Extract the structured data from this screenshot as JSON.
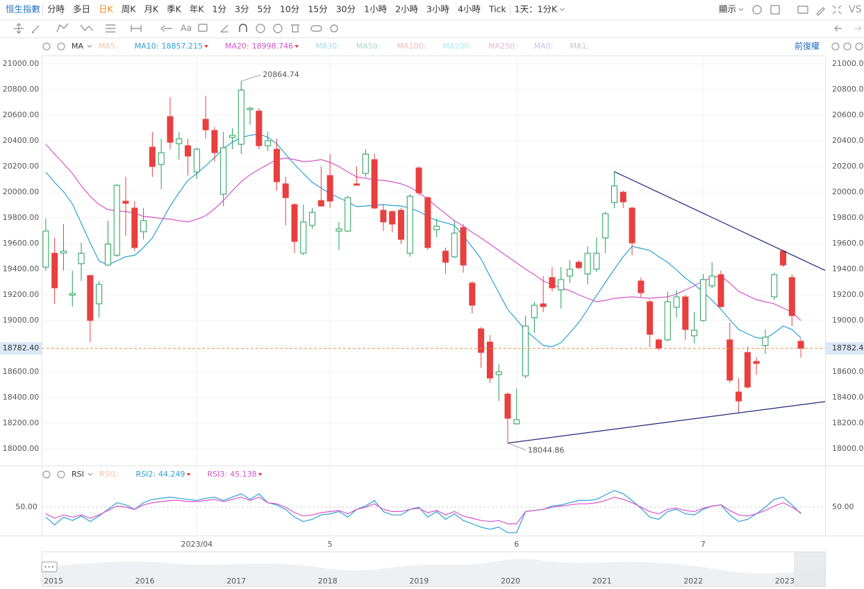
{
  "toolbar": {
    "symbol": "恒生指數",
    "periods": [
      "分時",
      "多日",
      "日K",
      "周K",
      "月K",
      "季K",
      "年K",
      "1分",
      "3分",
      "5分",
      "10分",
      "15分",
      "30分",
      "1小時",
      "2小時",
      "3小時",
      "4小時",
      "Tick"
    ],
    "active": 2,
    "range": "1天：1分K",
    "display": "顯示",
    "compare": "VS",
    "text_tool": "Aa"
  },
  "chart_data": [
    {
      "type": "candlestick",
      "indicator": "MA",
      "adjust": "前復權",
      "categories": [
        null,
        null,
        null,
        null,
        null,
        null,
        null,
        null,
        null,
        null,
        null,
        null,
        null,
        null,
        null,
        null,
        null,
        "2023/04",
        null,
        null,
        null,
        null,
        null,
        null,
        null,
        null,
        null,
        null,
        null,
        null,
        null,
        null,
        "5",
        null,
        null,
        null,
        null,
        null,
        null,
        null,
        null,
        null,
        null,
        null,
        null,
        null,
        null,
        null,
        null,
        null,
        null,
        null,
        null,
        "6",
        null,
        null,
        null,
        null,
        null,
        null,
        null,
        null,
        null,
        null,
        null,
        null,
        null,
        null,
        null,
        null,
        null,
        null,
        null,
        null,
        "7",
        null,
        null,
        null,
        null,
        null,
        null,
        null,
        null,
        null,
        null,
        null
      ],
      "open": [
        19416,
        19524,
        19525,
        19198,
        19443,
        19351,
        19130,
        19432,
        19508,
        19930,
        19876,
        19692,
        20351,
        20216,
        20589,
        20378,
        20362,
        20157,
        20568,
        20481,
        19984,
        20427,
        20373,
        20643,
        20632,
        20362,
        20335,
        20065,
        19903,
        19524,
        19741,
        19935,
        20130,
        19697,
        19697,
        20065,
        20146,
        20254,
        19859,
        19849,
        19859,
        19524,
        20189,
        19957,
        19708,
        19541,
        19497,
        19724,
        19292,
        18935,
        18832,
        18578,
        18427,
        18195,
        18568,
        19022,
        19130,
        19335,
        19238,
        19346,
        19454,
        19362,
        19400,
        19643,
        19919,
        20000,
        19876,
        19308,
        19146,
        18849,
        18849,
        19103,
        19184,
        18881,
        19000,
        19270,
        19357,
        18849,
        18443,
        18751,
        18681,
        18805,
        19184,
        19541,
        19335,
        18838
      ],
      "high": [
        19795,
        19643,
        19751,
        19389,
        19605,
        19351,
        19308,
        19778,
        20060,
        20119,
        19930,
        19876,
        20470,
        20416,
        20741,
        20470,
        20416,
        20346,
        20751,
        20508,
        20470,
        20497,
        20864.74,
        20665,
        20654,
        20470,
        20416,
        20119,
        19914,
        19903,
        19876,
        20200,
        20297,
        19768,
        19973,
        20200,
        20335,
        20297,
        19903,
        19859,
        19876,
        19984,
        20200,
        19968,
        19795,
        19568,
        19778,
        19751,
        19308,
        18950,
        18886,
        18660,
        18440,
        18470,
        19038,
        19146,
        19346,
        19416,
        19416,
        19470,
        19470,
        19578,
        19649,
        19849,
        20157,
        20011,
        19886,
        19335,
        19160,
        18859,
        19227,
        19238,
        19200,
        19065,
        19362,
        19454,
        19389,
        18984,
        18551,
        18795,
        18714,
        18930,
        19373,
        19551,
        19362,
        18860
      ],
      "low": [
        19389,
        19130,
        19389,
        19108,
        19308,
        18832,
        19022,
        19427,
        19497,
        19659,
        19541,
        19632,
        20119,
        20022,
        20335,
        20254,
        20130,
        20103,
        20416,
        20238,
        19892,
        20335,
        20297,
        20524,
        20335,
        20319,
        20011,
        19741,
        19524,
        19510,
        19714,
        19886,
        19876,
        19551,
        19690,
        20049,
        20119,
        19870,
        19697,
        19686,
        19595,
        19497,
        19973,
        19551,
        19649,
        19362,
        19486,
        19373,
        19054,
        18632,
        18514,
        18373,
        18044.86,
        18189,
        18551,
        18903,
        19065,
        19227,
        19092,
        19292,
        19400,
        19281,
        19378,
        19524,
        19876,
        19876,
        19508,
        19184,
        18795,
        18768,
        18838,
        19022,
        18849,
        18822,
        18990,
        19254,
        19100,
        18514,
        18281,
        18470,
        18578,
        18740,
        19162,
        19416,
        18957,
        18711
      ],
      "close": [
        19697,
        19254,
        19540,
        19210,
        19524,
        19000,
        19281,
        19595,
        20054,
        19913,
        19568,
        19778,
        20200,
        20308,
        20389,
        20416,
        20281,
        20335,
        20486,
        20308,
        20346,
        20443,
        20795,
        20654,
        20362,
        20400,
        20081,
        19957,
        19616,
        19768,
        19843,
        19892,
        19930,
        19714,
        19957,
        20054,
        20297,
        19876,
        19768,
        19751,
        19632,
        19968,
        19995,
        19568,
        19735,
        19454,
        19681,
        19432,
        19119,
        18751,
        18551,
        18600,
        18238,
        18227,
        18957,
        19119,
        19108,
        19254,
        19319,
        19400,
        19411,
        19524,
        19524,
        19832,
        20049,
        19924,
        19605,
        19216,
        18892,
        18784,
        19146,
        19184,
        18930,
        18924,
        19319,
        19346,
        19108,
        18535,
        18373,
        18481,
        18665,
        18870,
        19357,
        19432,
        19038,
        18782.4
      ],
      "up_color": "#1f9d55",
      "down_color": "#e83f3f",
      "series": [
        {
          "name": "MA5:",
          "color": "#f5c3a5"
        },
        {
          "name": "MA10:",
          "color": "#2a9fd6",
          "last": 18857.215,
          "values": [
            20157,
            20076,
            20005,
            19908,
            19757,
            19606,
            19465,
            19433,
            19465,
            19497,
            19508,
            19568,
            19643,
            19768,
            19892,
            19995,
            20092,
            20146,
            20205,
            20270,
            20341,
            20389,
            20427,
            20443,
            20454,
            20427,
            20378,
            20297,
            20216,
            20146,
            20076,
            20032,
            19989,
            19957,
            19924,
            19887,
            19892,
            19897,
            19903,
            19897,
            19892,
            19876,
            19849,
            19811,
            19778,
            19762,
            19741,
            19660,
            19573,
            19481,
            19346,
            19216,
            19087,
            19006,
            18924,
            18865,
            18806,
            18795,
            18827,
            18903,
            18984,
            19087,
            19195,
            19297,
            19400,
            19497,
            19578,
            19562,
            19546,
            19497,
            19454,
            19395,
            19330,
            19281,
            19222,
            19157,
            19087,
            19006,
            18930,
            18897,
            18865,
            18860,
            18903,
            18957,
            18930,
            18865
          ]
        },
        {
          "name": "MA20:",
          "color": "#d652c9",
          "last": 18998.746,
          "values": [
            20373,
            20297,
            20222,
            20146,
            20049,
            19968,
            19903,
            19865,
            19854,
            19849,
            19838,
            19811,
            19805,
            19795,
            19789,
            19778,
            19768,
            19789,
            19816,
            19870,
            19935,
            20011,
            20081,
            20135,
            20178,
            20216,
            20254,
            20265,
            20254,
            20238,
            20243,
            20254,
            20232,
            20200,
            20157,
            20119,
            20108,
            20097,
            20092,
            20081,
            20065,
            20038,
            19995,
            19946,
            19887,
            19833,
            19778,
            19735,
            19687,
            19643,
            19595,
            19546,
            19497,
            19449,
            19400,
            19357,
            19308,
            19281,
            19254,
            19233,
            19200,
            19173,
            19146,
            19157,
            19173,
            19179,
            19184,
            19179,
            19173,
            19179,
            19184,
            19206,
            19238,
            19270,
            19308,
            19335,
            19346,
            19292,
            19227,
            19195,
            19162,
            19146,
            19130,
            19097,
            19065,
            19000
          ]
        },
        {
          "name": "MA30:",
          "color": "#a8d8ec"
        },
        {
          "name": "MA50:",
          "color": "#a6d9c8"
        },
        {
          "name": "MA100:",
          "color": "#f1b9b9"
        },
        {
          "name": "MA200:",
          "color": "#a9eaf2"
        },
        {
          "name": "MA250:",
          "color": "#e3b6d0"
        },
        {
          "name": "MA0:",
          "color": "#c8c2ea"
        },
        {
          "name": "MA1:",
          "color": "#c6c6c6"
        }
      ],
      "last": {
        "value": 18782.4,
        "label": "18782.40"
      },
      "trend_lines": [
        {
          "from": [
            64,
            20160
          ],
          "to": [
            87.73,
            19390
          ]
        },
        {
          "from": [
            52,
            18044.86
          ],
          "to": [
            87.73,
            18368
          ]
        }
      ],
      "xlim": [
        -0.46,
        87.73
      ],
      "ylim": [
        17870,
        21065
      ],
      "yticks": [
        {
          "value": 18000,
          "label": "18000.00"
        },
        {
          "value": 18200,
          "label": "18200.00"
        },
        {
          "value": 18400,
          "label": "18400.00"
        },
        {
          "value": 18600,
          "label": "18600.00"
        },
        {
          "value": 18800,
          "label": "18800.00"
        },
        {
          "value": 19000,
          "label": "19000.00"
        },
        {
          "value": 19200,
          "label": "19200.00"
        },
        {
          "value": 19400,
          "label": "19400.00"
        },
        {
          "value": 19600,
          "label": "19600.00"
        },
        {
          "value": 19800,
          "label": "19800.00"
        },
        {
          "value": 20000,
          "label": "20000.00"
        },
        {
          "value": 20200,
          "label": "20200.00"
        },
        {
          "value": 20400,
          "label": "20400.00"
        },
        {
          "value": 20600,
          "label": "20600.00"
        },
        {
          "value": 20800,
          "label": "20800.00"
        },
        {
          "value": 21000,
          "label": "21000.00"
        }
      ],
      "grid": true
    },
    {
      "type": "line",
      "indicator": "RSI",
      "series": [
        {
          "name": "RSI1:",
          "color": "#f5c3a5"
        },
        {
          "name": "RSI2:",
          "color": "#2a9fd6",
          "last": 44.249,
          "values": [
            41,
            34,
            41,
            38,
            42,
            37,
            42,
            48,
            54,
            52,
            48,
            54,
            57,
            58,
            59,
            58,
            57,
            56,
            58,
            59,
            56,
            59,
            62,
            57,
            62,
            54,
            52,
            48,
            41,
            37,
            39,
            43,
            44,
            46,
            41,
            48,
            51,
            56,
            46,
            43,
            43,
            48,
            50,
            41,
            46,
            39,
            44,
            38,
            35,
            32,
            30,
            32,
            27,
            27,
            46,
            47,
            48,
            51,
            52,
            54,
            56,
            56,
            57,
            61,
            65,
            62,
            56,
            49,
            41,
            39,
            46,
            48,
            44,
            43,
            48,
            51,
            52,
            43,
            37,
            39,
            44,
            50,
            57,
            59,
            52,
            44
          ]
        },
        {
          "name": "RSI3:",
          "color": "#d652c9",
          "last": 45.138,
          "values": [
            44,
            40,
            43,
            41,
            43,
            40,
            43,
            47,
            51,
            50,
            48,
            52,
            54,
            55,
            56,
            56,
            55,
            55,
            56,
            57,
            55,
            57,
            59,
            56,
            59,
            54,
            53,
            50,
            45,
            42,
            43,
            45,
            46,
            47,
            44,
            48,
            50,
            53,
            48,
            46,
            46,
            48,
            49,
            45,
            47,
            43,
            46,
            42,
            40,
            38,
            37,
            38,
            35,
            35,
            46,
            47,
            48,
            50,
            51,
            52,
            53,
            53,
            54,
            56,
            59,
            57,
            54,
            50,
            46,
            44,
            48,
            49,
            47,
            46,
            49,
            51,
            52,
            47,
            43,
            42,
            44,
            47,
            51,
            54,
            50,
            45
          ]
        }
      ],
      "xlim": [
        -0.46,
        87.73
      ],
      "ylim": [
        24.4,
        86.25
      ],
      "yticks": [
        {
          "value": 50,
          "label": "50.00"
        }
      ]
    }
  ],
  "navigator": {
    "years": [
      "2015",
      "2016",
      "2017",
      "2018",
      "2019",
      "2020",
      "2021",
      "2022",
      "2023"
    ]
  }
}
